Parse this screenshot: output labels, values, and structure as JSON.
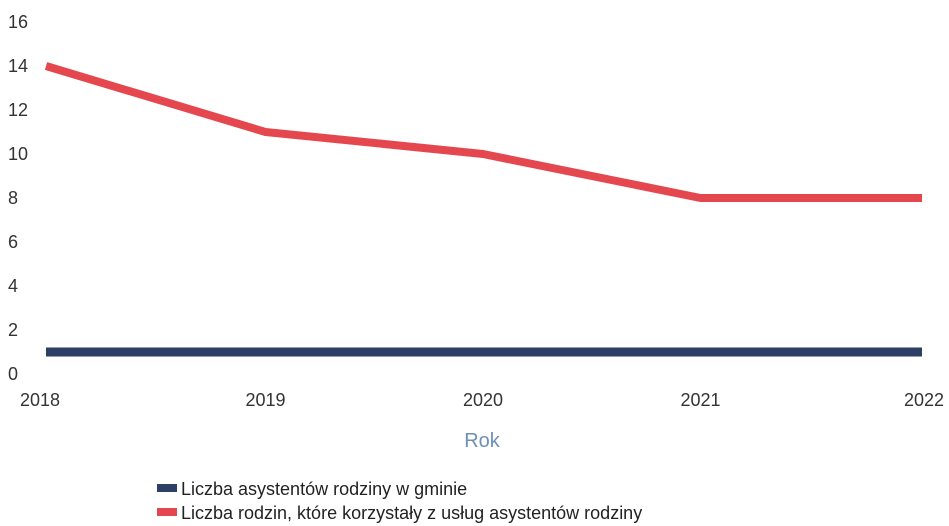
{
  "chart_data": {
    "type": "line",
    "x": [
      "2018",
      "2019",
      "2020",
      "2021",
      "2022"
    ],
    "xlabel": "Rok",
    "ylabel": "",
    "ylim": [
      0,
      16
    ],
    "yticks": [
      0,
      2,
      4,
      6,
      8,
      10,
      12,
      14,
      16
    ],
    "grid": false,
    "legend_position": "bottom",
    "series": [
      {
        "name": "Liczba asystentów rodziny w gminie",
        "values": [
          1,
          1,
          1,
          1,
          1
        ],
        "color": "#2e3f66"
      },
      {
        "name": "Liczba rodzin, które korzystały z usług asystentów rodziny",
        "values": [
          14,
          11,
          10,
          8,
          8
        ],
        "color": "#e5474f"
      }
    ],
    "xlabel_color": "#6f8fb5"
  }
}
